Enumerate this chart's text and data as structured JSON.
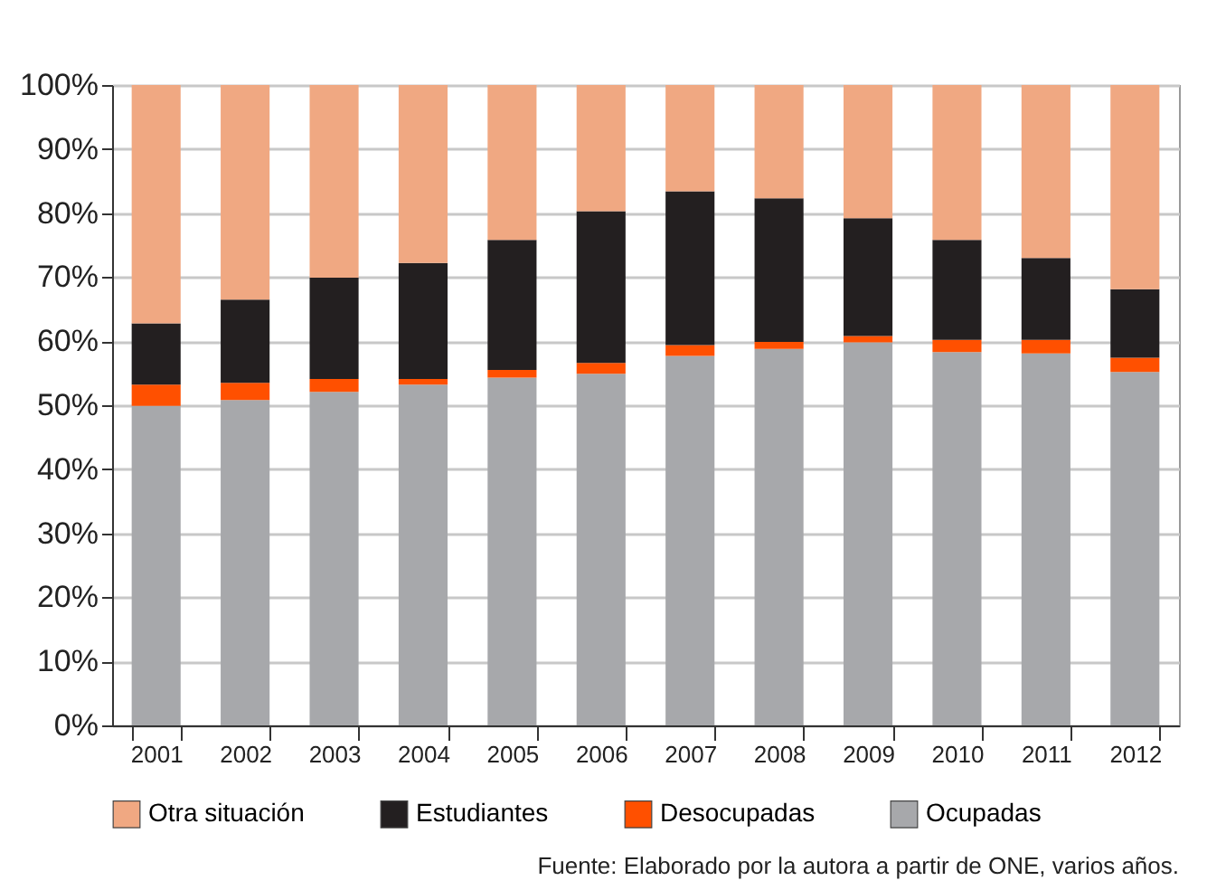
{
  "chart_data": {
    "type": "bar",
    "stacked": true,
    "categories": [
      "2001",
      "2002",
      "2003",
      "2004",
      "2005",
      "2006",
      "2007",
      "2008",
      "2009",
      "2010",
      "2011",
      "2012"
    ],
    "series": [
      {
        "name": "Ocupadas",
        "color": "#a7a8ab",
        "values": [
          49.9,
          50.8,
          52.1,
          53.2,
          54.3,
          54.9,
          57.7,
          58.8,
          59.8,
          58.3,
          58.1,
          55.2
        ]
      },
      {
        "name": "Desocupadas",
        "color": "#ff5000",
        "values": [
          3.3,
          2.7,
          2.0,
          0.9,
          1.2,
          1.7,
          1.7,
          1.1,
          1.0,
          1.9,
          2.1,
          2.2
        ]
      },
      {
        "name": "Estudiantes",
        "color": "#231f20",
        "values": [
          9.6,
          13.0,
          15.8,
          18.1,
          20.3,
          23.7,
          24.0,
          22.4,
          18.4,
          15.6,
          12.8,
          10.7
        ]
      },
      {
        "name": "Otra situación",
        "color": "#f0a882",
        "values": [
          37.2,
          33.5,
          30.1,
          27.8,
          24.2,
          19.7,
          16.6,
          17.7,
          20.8,
          24.2,
          27.0,
          31.9
        ]
      }
    ],
    "ylim": [
      0,
      100
    ],
    "yticks": [
      {
        "value": 0,
        "label": "0%"
      },
      {
        "value": 10,
        "label": "10%"
      },
      {
        "value": 20,
        "label": "20%"
      },
      {
        "value": 30,
        "label": "30%"
      },
      {
        "value": 40,
        "label": "40%"
      },
      {
        "value": 50,
        "label": "50%"
      },
      {
        "value": 60,
        "label": "60%"
      },
      {
        "value": 70,
        "label": "70%"
      },
      {
        "value": 80,
        "label": "80%"
      },
      {
        "value": 90,
        "label": "90%"
      },
      {
        "value": 100,
        "label": "100%"
      }
    ],
    "grid": "y",
    "legend": "bottom",
    "annotations": [
      "Fuente: Elaborado por la autora a partir de ONE, varios años."
    ]
  }
}
